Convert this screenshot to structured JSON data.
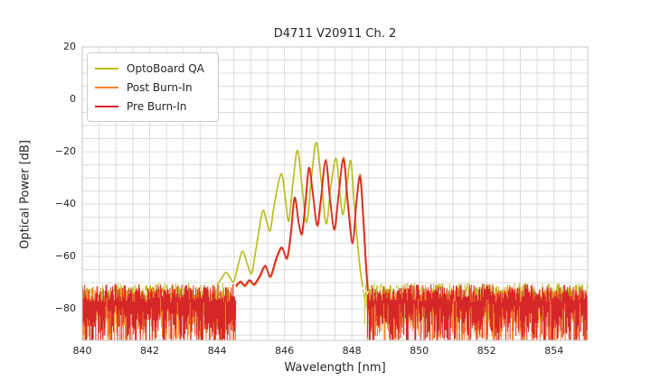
{
  "window": {
    "background": "#ffffff"
  },
  "chart_data": {
    "type": "line",
    "title": "D4711 V20911 Ch. 2",
    "xlabel": "Wavelength [nm]",
    "ylabel": "Optical Power [dB]",
    "xlim": [
      840,
      855
    ],
    "ylim": [
      -92,
      20
    ],
    "xticks": [
      {
        "v": 840,
        "t": "840"
      },
      {
        "v": 842,
        "t": "842"
      },
      {
        "v": 844,
        "t": "844"
      },
      {
        "v": 846,
        "t": "846"
      },
      {
        "v": 848,
        "t": "848"
      },
      {
        "v": 850,
        "t": "850"
      },
      {
        "v": 852,
        "t": "852"
      },
      {
        "v": 854,
        "t": "854"
      }
    ],
    "yticks": [
      {
        "v": 20,
        "t": "20"
      },
      {
        "v": 0,
        "t": "0"
      },
      {
        "v": -20,
        "t": "−20"
      },
      {
        "v": -40,
        "t": "−40"
      },
      {
        "v": -60,
        "t": "−60"
      },
      {
        "v": -80,
        "t": "−80"
      }
    ],
    "grid": {
      "on": true,
      "x_step": 0.5,
      "y_step": 5,
      "color": "#dcdcdc",
      "spine_color": "#c6c6c6"
    },
    "legend": {
      "position": "upper-left"
    },
    "noise_seed": 1337,
    "noise_step_nm": 0.025,
    "series": [
      {
        "name": "OptoBoard QA",
        "color": "#bcbd22",
        "line_width": 1.7,
        "noise": {
          "regions": [
            [
              840.0,
              844.47
            ],
            [
              848.33,
              855.0
            ]
          ],
          "top": -73.0,
          "top_jitter": 3.0,
          "drop_min": 1.0,
          "drop_range": 11.0
        },
        "points": [
          [
            844.02,
            -70.5
          ],
          [
            844.15,
            -68
          ],
          [
            844.27,
            -66
          ],
          [
            844.38,
            -68
          ],
          [
            844.5,
            -69.5
          ],
          [
            844.63,
            -63
          ],
          [
            844.76,
            -58
          ],
          [
            844.9,
            -63
          ],
          [
            845.02,
            -66.5
          ],
          [
            845.12,
            -60
          ],
          [
            845.22,
            -52
          ],
          [
            845.36,
            -42.5
          ],
          [
            845.48,
            -47
          ],
          [
            845.58,
            -50
          ],
          [
            845.7,
            -40
          ],
          [
            845.9,
            -28.5
          ],
          [
            846.02,
            -37
          ],
          [
            846.13,
            -46.5
          ],
          [
            846.25,
            -32
          ],
          [
            846.39,
            -19.5
          ],
          [
            846.52,
            -33
          ],
          [
            846.66,
            -47
          ],
          [
            846.8,
            -30
          ],
          [
            846.95,
            -16.5
          ],
          [
            847.1,
            -32
          ],
          [
            847.24,
            -47.5
          ],
          [
            847.38,
            -33
          ],
          [
            847.53,
            -22.5
          ],
          [
            847.64,
            -35
          ],
          [
            847.74,
            -44
          ],
          [
            847.86,
            -32
          ],
          [
            847.97,
            -23.5
          ],
          [
            848.06,
            -38
          ],
          [
            848.15,
            -52
          ],
          [
            848.24,
            -64
          ],
          [
            848.32,
            -71.5
          ]
        ]
      },
      {
        "name": "Post Burn-In",
        "color": "#f8842c",
        "line_width": 1.7,
        "noise": {
          "regions": [
            [
              840.0,
              844.55
            ],
            [
              848.46,
              855.0
            ]
          ],
          "top": -74.5,
          "top_jitter": 3.0,
          "drop_min": 5.0,
          "drop_range": 15.0
        },
        "points": [
          [
            844.58,
            -71.5
          ],
          [
            844.71,
            -70
          ],
          [
            844.83,
            -71.5
          ],
          [
            844.97,
            -69.5
          ],
          [
            845.11,
            -71
          ],
          [
            845.27,
            -68
          ],
          [
            845.44,
            -64
          ],
          [
            845.59,
            -68
          ],
          [
            845.77,
            -61
          ],
          [
            845.93,
            -57
          ],
          [
            846.08,
            -61
          ],
          [
            846.19,
            -52.5
          ],
          [
            846.31,
            -38
          ],
          [
            846.43,
            -47.5
          ],
          [
            846.53,
            -51.5
          ],
          [
            846.64,
            -38.5
          ],
          [
            846.74,
            -26.5
          ],
          [
            846.86,
            -37.5
          ],
          [
            846.98,
            -48.5
          ],
          [
            847.09,
            -38.5
          ],
          [
            847.23,
            -23
          ],
          [
            847.36,
            -38.5
          ],
          [
            847.49,
            -50
          ],
          [
            847.61,
            -36.5
          ],
          [
            847.76,
            -22.2
          ],
          [
            847.89,
            -39.5
          ],
          [
            848.03,
            -54
          ],
          [
            848.14,
            -39.5
          ],
          [
            848.25,
            -28.7
          ],
          [
            848.34,
            -43.5
          ],
          [
            848.42,
            -61
          ],
          [
            848.48,
            -72.5
          ]
        ]
      },
      {
        "name": "Pre Burn-In",
        "color": "#d62728",
        "line_width": 1.7,
        "noise": {
          "regions": [
            [
              840.0,
              844.57
            ],
            [
              848.47,
              855.0
            ]
          ],
          "top": -74.0,
          "top_jitter": 3.5,
          "drop_min": 5.0,
          "drop_range": 16.0
        },
        "points": [
          [
            844.57,
            -71
          ],
          [
            844.7,
            -69.5
          ],
          [
            844.82,
            -71
          ],
          [
            844.96,
            -69
          ],
          [
            845.1,
            -70.5
          ],
          [
            845.26,
            -67.5
          ],
          [
            845.43,
            -63.5
          ],
          [
            845.58,
            -67.5
          ],
          [
            845.76,
            -60.5
          ],
          [
            845.92,
            -56.5
          ],
          [
            846.07,
            -60.5
          ],
          [
            846.18,
            -52
          ],
          [
            846.3,
            -37.5
          ],
          [
            846.42,
            -47
          ],
          [
            846.52,
            -51
          ],
          [
            846.63,
            -38
          ],
          [
            846.73,
            -26
          ],
          [
            846.85,
            -37
          ],
          [
            846.97,
            -48
          ],
          [
            847.08,
            -38
          ],
          [
            847.22,
            -23.5
          ],
          [
            847.35,
            -38
          ],
          [
            847.48,
            -49.5
          ],
          [
            847.6,
            -37
          ],
          [
            847.75,
            -23
          ],
          [
            847.88,
            -40
          ],
          [
            848.02,
            -55
          ],
          [
            848.13,
            -40
          ],
          [
            848.24,
            -29.5
          ],
          [
            848.33,
            -44
          ],
          [
            848.41,
            -62
          ],
          [
            848.47,
            -73
          ]
        ]
      }
    ]
  }
}
